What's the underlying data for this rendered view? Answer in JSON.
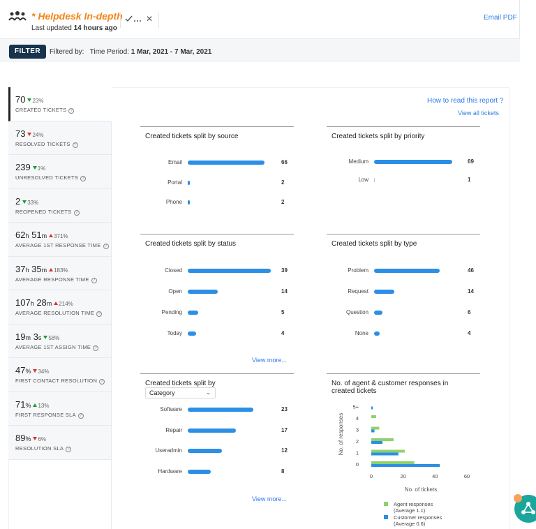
{
  "header": {
    "title": "* Helpdesk In-depth",
    "updated_prefix": "Last updated",
    "updated_value": "14 hours ago",
    "email_pdf": "Email PDF",
    "filter_label": "FILTER",
    "filtered_by_label": "Filtered by:",
    "time_period_label": "Time Period:",
    "time_period_value": "1 Mar, 2021 - 7 Mar, 2021"
  },
  "links": {
    "how_to": "How to read this report ?",
    "view_all": "View all tickets"
  },
  "metrics": [
    {
      "value": "70",
      "change": "23%",
      "dir": "down",
      "color": "green",
      "label": "CREATED TICKETS"
    },
    {
      "value": "73",
      "change": "24%",
      "dir": "down",
      "color": "red",
      "label": "RESOLVED TICKETS"
    },
    {
      "value": "239",
      "change": "1%",
      "dir": "down",
      "color": "green",
      "label": "UNRESOLVED TICKETS"
    },
    {
      "value": "2",
      "change": "33%",
      "dir": "down",
      "color": "green",
      "label": "REOPENED TICKETS"
    },
    {
      "value_parts": [
        "62",
        "h",
        " 51",
        "m"
      ],
      "change": "371%",
      "dir": "up",
      "color": "red",
      "label": "AVERAGE 1ST RESPONSE TIME"
    },
    {
      "value_parts": [
        "37",
        "h",
        " 35",
        "m"
      ],
      "change": "183%",
      "dir": "up",
      "color": "red",
      "label": "AVERAGE RESPONSE TIME"
    },
    {
      "value_parts": [
        "107",
        "h",
        " 28",
        "m"
      ],
      "change": "214%",
      "dir": "up",
      "color": "red",
      "label": "AVERAGE RESOLUTION TIME"
    },
    {
      "value_parts": [
        "19",
        "m",
        " 3",
        "s"
      ],
      "change": "58%",
      "dir": "down",
      "color": "green",
      "label": "AVERAGE 1ST ASSIGN TIME"
    },
    {
      "value_parts": [
        "47",
        "%"
      ],
      "change": "34%",
      "dir": "down",
      "color": "red",
      "label": "FIRST CONTACT RESOLUTION"
    },
    {
      "value_parts": [
        "71",
        "%"
      ],
      "change": "13%",
      "dir": "up",
      "color": "green",
      "label": "FIRST RESPONSE SLA"
    },
    {
      "value_parts": [
        "89",
        "%"
      ],
      "change": "6%",
      "dir": "down",
      "color": "red",
      "label": "RESOLUTION SLA"
    }
  ],
  "charts": {
    "source": {
      "title": "Created tickets split by source",
      "rows": [
        {
          "cat": "Email",
          "value": 66
        },
        {
          "cat": "Portal",
          "value": 2
        },
        {
          "cat": "Phone",
          "value": 2
        }
      ]
    },
    "priority": {
      "title": "Created tickets split by priority",
      "rows": [
        {
          "cat": "Medium",
          "value": 69
        },
        {
          "cat": "Low",
          "value": 1
        }
      ]
    },
    "status": {
      "title": "Created tickets split by status",
      "rows": [
        {
          "cat": "Closed",
          "value": 39
        },
        {
          "cat": "Open",
          "value": 14
        },
        {
          "cat": "Pending",
          "value": 5
        },
        {
          "cat": "Today",
          "value": 4
        }
      ]
    },
    "type": {
      "title": "Created tickets split by type",
      "rows": [
        {
          "cat": "Problem",
          "value": 46
        },
        {
          "cat": "Request",
          "value": 14
        },
        {
          "cat": "Question",
          "value": 6
        },
        {
          "cat": "None",
          "value": 4
        }
      ]
    },
    "category": {
      "title": "Created tickets split by",
      "select_value": "Category",
      "rows": [
        {
          "cat": "Software",
          "value": 23
        },
        {
          "cat": "Repair",
          "value": 17
        },
        {
          "cat": "Useradmin",
          "value": 12
        },
        {
          "cat": "Hardware",
          "value": 8
        }
      ]
    },
    "view_more": "View more..."
  },
  "chart_data": {
    "type": "bar",
    "orientation": "horizontal",
    "title": "No. of agent & customer responses in created tickets",
    "categories": [
      "0",
      "1",
      "2",
      "3",
      "4",
      "5+"
    ],
    "series": [
      {
        "name": "Agent responses",
        "note": "(Average 1.1)",
        "values": [
          27,
          21,
          14,
          5,
          3,
          0
        ],
        "color": "#8ed16c"
      },
      {
        "name": "Customer responses",
        "note": "(Average 0.6)",
        "values": [
          43,
          17,
          7,
          2,
          0,
          1
        ],
        "color": "#2b8fe6"
      }
    ],
    "xlabel": "No. of tickets",
    "ylabel": "No. of responses",
    "xticks": [
      0,
      20,
      40,
      60
    ],
    "xlim": [
      0,
      60
    ],
    "legend": "bottom"
  }
}
